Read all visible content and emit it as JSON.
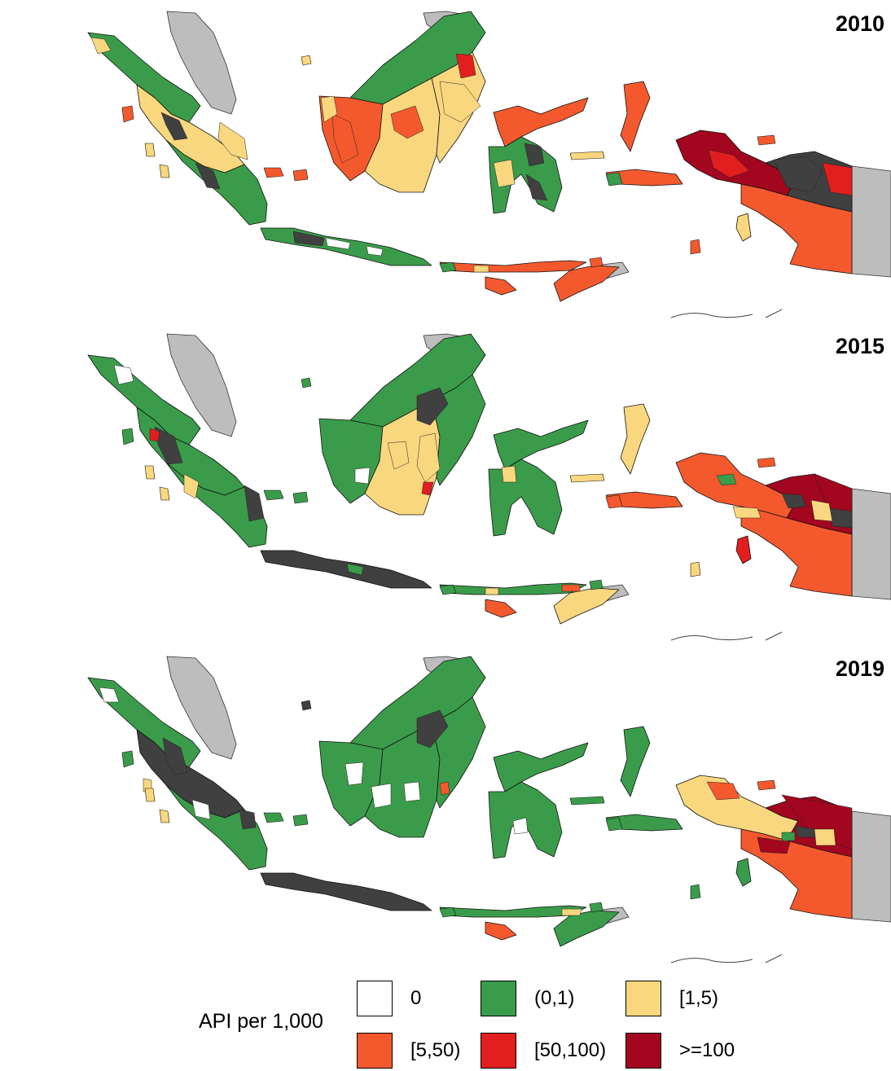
{
  "panels": [
    {
      "year": "2010",
      "scheme": "y2010"
    },
    {
      "year": "2015",
      "scheme": "y2015"
    },
    {
      "year": "2019",
      "scheme": "y2019"
    }
  ],
  "legend": {
    "title": "API per 1,000",
    "items": [
      {
        "label": "0",
        "color": "#ffffff"
      },
      {
        "label": "(0,1)",
        "color": "#3a9c4a"
      },
      {
        "label": "[1,5)",
        "color": "#f9d77e"
      },
      {
        "label": "[5,50)",
        "color": "#f4592e"
      },
      {
        "label": "[50,100)",
        "color": "#e21e1e"
      },
      {
        "label": ">=100",
        "color": "#a3061f"
      }
    ]
  },
  "colors": {
    "no_data": "#404040",
    "neighbor_countries": "#bdbdbd",
    "border": "#111111"
  }
}
